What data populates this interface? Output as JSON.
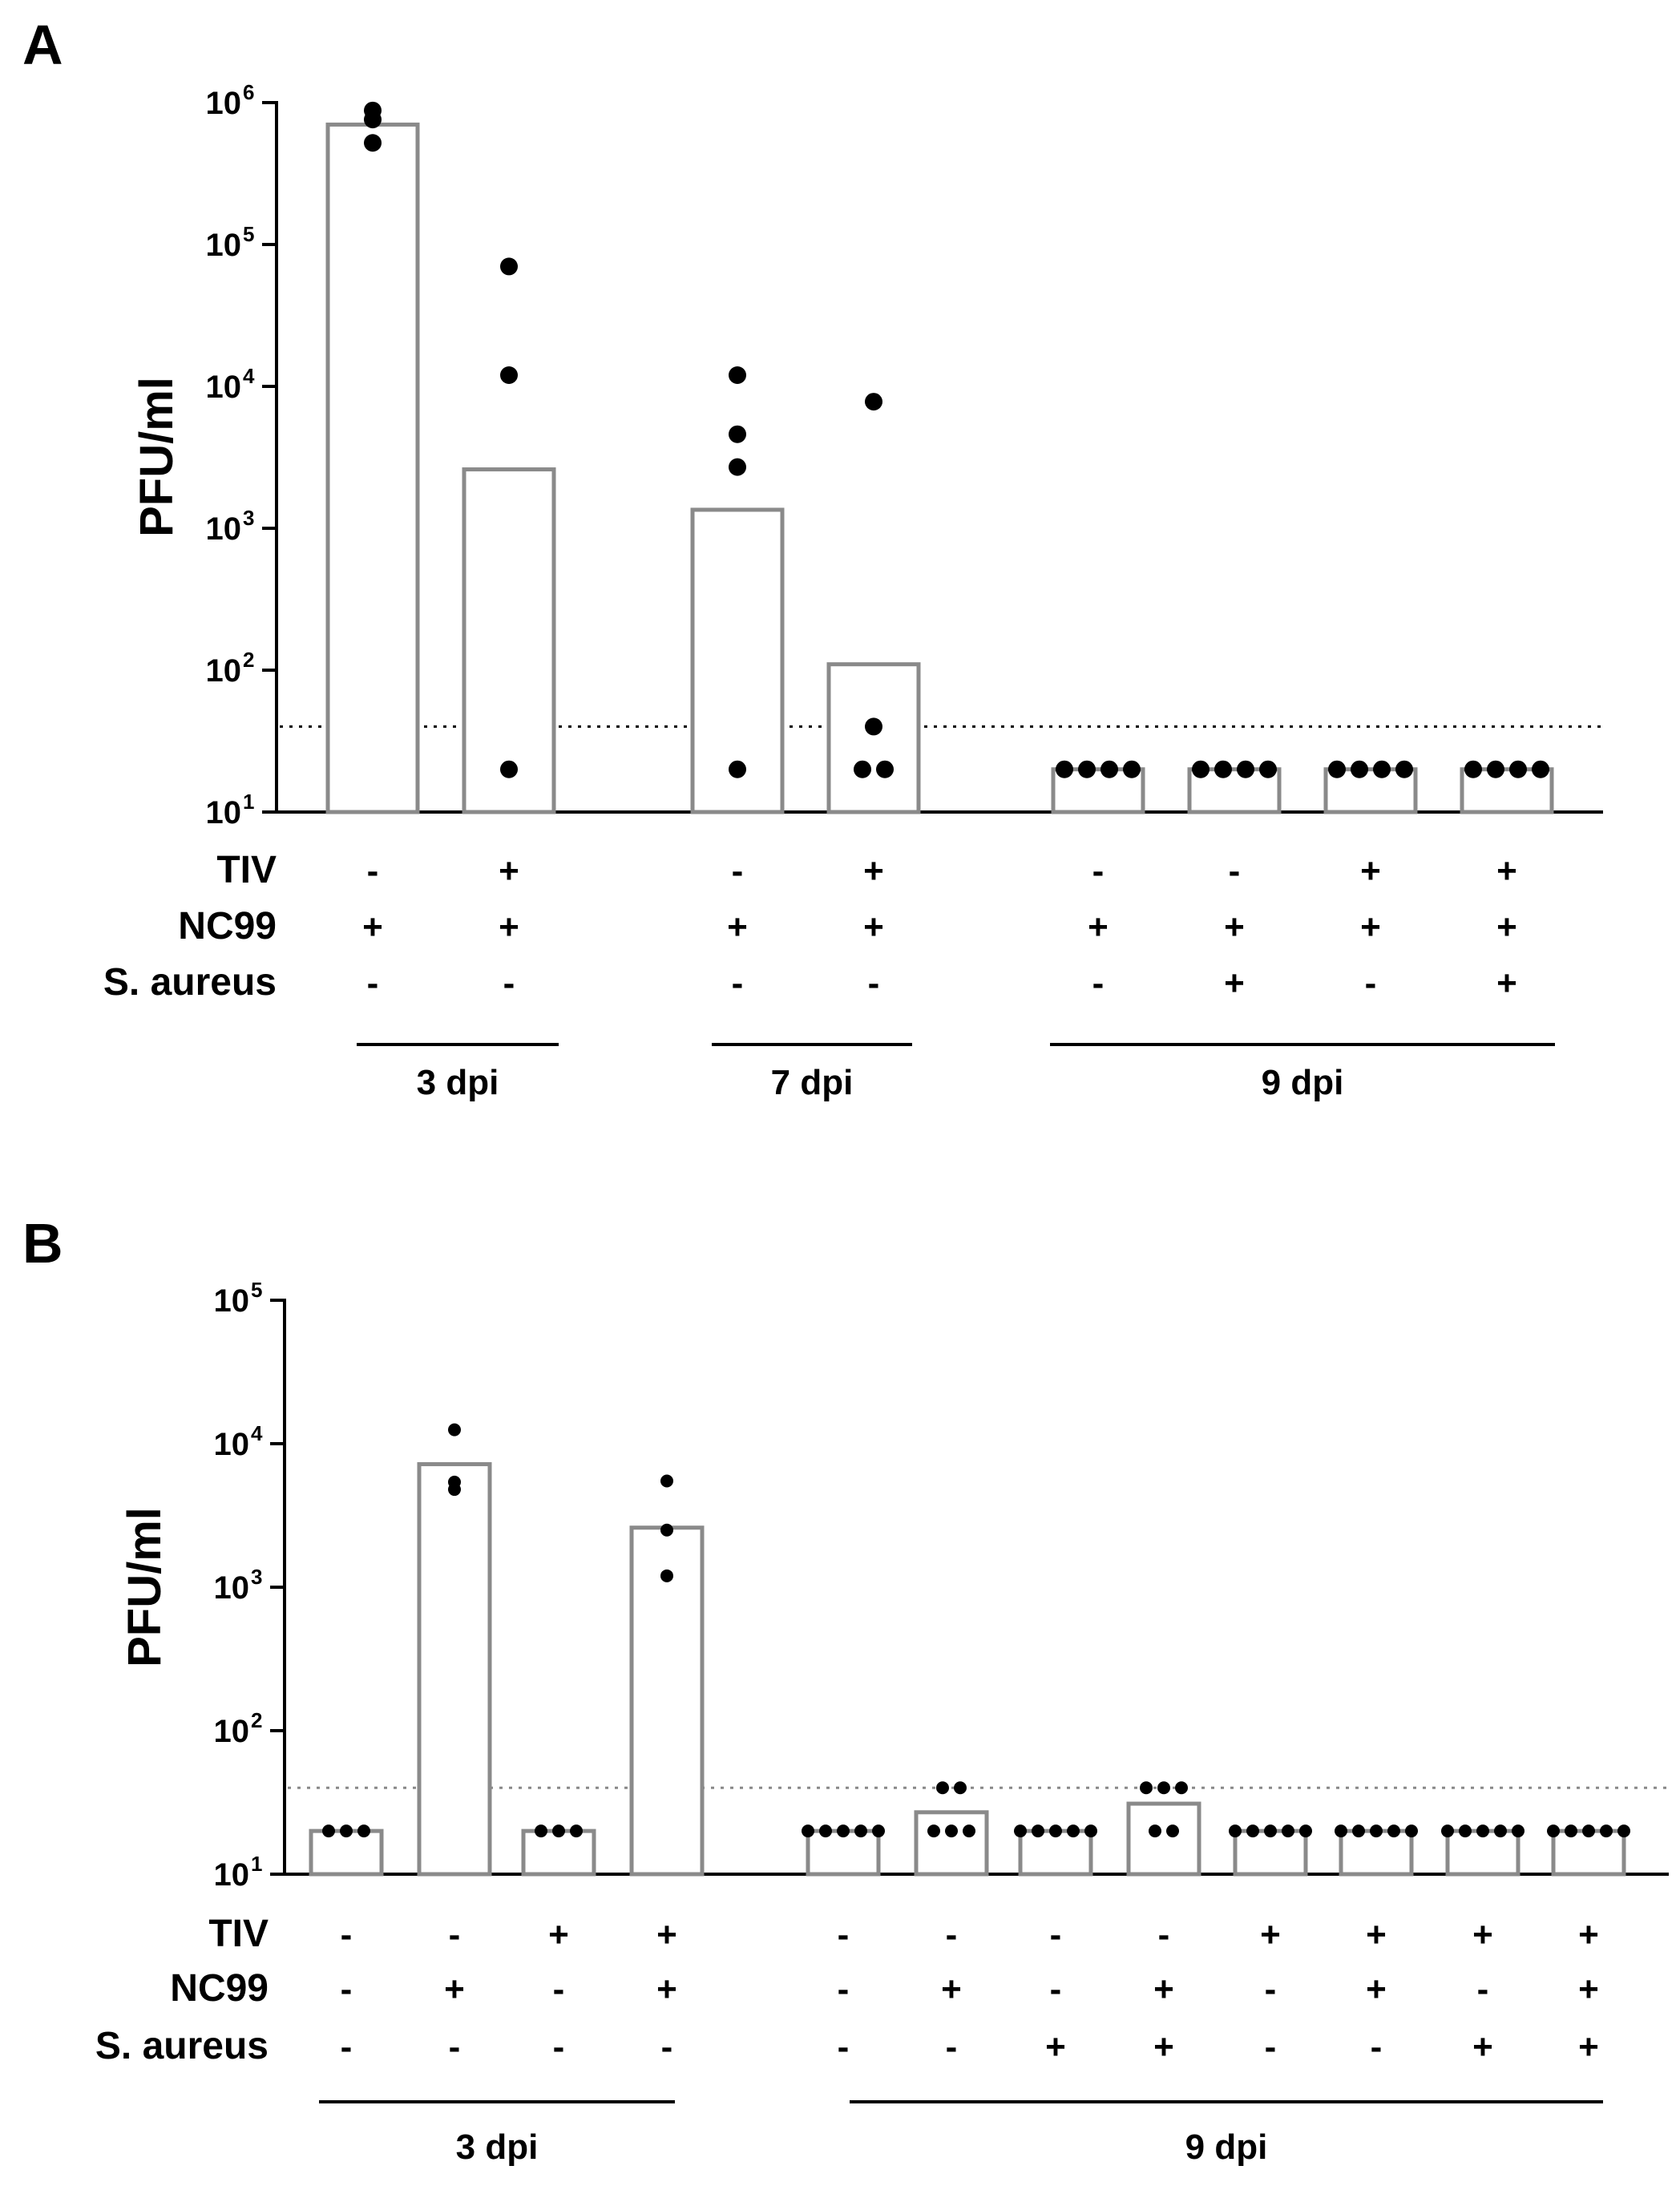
{
  "chart_data": [
    {
      "panel": "A",
      "type": "bar",
      "scale": "log",
      "ylabel": "PFU/ml",
      "ylim": [
        10,
        1000000
      ],
      "yticks": [
        {
          "base": "10",
          "exp": "1"
        },
        {
          "base": "10",
          "exp": "2"
        },
        {
          "base": "10",
          "exp": "3"
        },
        {
          "base": "10",
          "exp": "4"
        },
        {
          "base": "10",
          "exp": "5"
        },
        {
          "base": "10",
          "exp": "6"
        }
      ],
      "detection_limit": 40,
      "row_labels": [
        "TIV",
        "NC99",
        "S. aureus"
      ],
      "bars": [
        {
          "value": 700000,
          "points": [
            520000,
            760000,
            880000
          ],
          "tiv": "-",
          "nc99": "+",
          "saureus": "-"
        },
        {
          "value": 2600,
          "points": [
            20,
            12000,
            70000
          ],
          "tiv": "+",
          "nc99": "+",
          "saureus": "-"
        },
        {
          "value": 1350,
          "points": [
            20,
            2700,
            4600,
            12000
          ],
          "tiv": "-",
          "nc99": "+",
          "saureus": "-"
        },
        {
          "value": 110,
          "points": [
            20,
            20,
            40,
            7800
          ],
          "tiv": "+",
          "nc99": "+",
          "saureus": "-"
        },
        {
          "value": 20,
          "points": [
            20,
            20,
            20,
            20
          ],
          "tiv": "-",
          "nc99": "+",
          "saureus": "-"
        },
        {
          "value": 20,
          "points": [
            20,
            20,
            20,
            20
          ],
          "tiv": "-",
          "nc99": "+",
          "saureus": "+"
        },
        {
          "value": 20,
          "points": [
            20,
            20,
            20,
            20
          ],
          "tiv": "+",
          "nc99": "+",
          "saureus": "-"
        },
        {
          "value": 20,
          "points": [
            20,
            20,
            20,
            20
          ],
          "tiv": "+",
          "nc99": "+",
          "saureus": "+"
        }
      ],
      "groups": [
        {
          "label": "3 dpi",
          "first": 0,
          "last": 1
        },
        {
          "label": "7 dpi",
          "first": 2,
          "last": 3
        },
        {
          "label": "9 dpi",
          "first": 4,
          "last": 7
        }
      ]
    },
    {
      "panel": "B",
      "type": "bar",
      "scale": "log",
      "ylabel": "PFU/ml",
      "ylim": [
        10,
        100000
      ],
      "yticks": [
        {
          "base": "10",
          "exp": "1"
        },
        {
          "base": "10",
          "exp": "2"
        },
        {
          "base": "10",
          "exp": "3"
        },
        {
          "base": "10",
          "exp": "4"
        },
        {
          "base": "10",
          "exp": "5"
        }
      ],
      "detection_limit": 40,
      "row_labels": [
        "TIV",
        "NC99",
        "S. aureus"
      ],
      "bars": [
        {
          "value": 20,
          "points": [
            20,
            20,
            20
          ],
          "tiv": "-",
          "nc99": "-",
          "saureus": "-"
        },
        {
          "value": 7200,
          "points": [
            4800,
            5400,
            12500
          ],
          "tiv": "-",
          "nc99": "+",
          "saureus": "-"
        },
        {
          "value": 20,
          "points": [
            20,
            20,
            20
          ],
          "tiv": "+",
          "nc99": "-",
          "saureus": "-"
        },
        {
          "value": 2600,
          "points": [
            1200,
            2500,
            5500
          ],
          "tiv": "+",
          "nc99": "+",
          "saureus": "-"
        },
        {
          "value": 20,
          "points": [
            20,
            20,
            20,
            20,
            20
          ],
          "tiv": "-",
          "nc99": "-",
          "saureus": "-"
        },
        {
          "value": 27,
          "points": [
            20,
            20,
            20,
            40,
            40
          ],
          "tiv": "-",
          "nc99": "+",
          "saureus": "-"
        },
        {
          "value": 20,
          "points": [
            20,
            20,
            20,
            20,
            20
          ],
          "tiv": "-",
          "nc99": "-",
          "saureus": "+"
        },
        {
          "value": 31,
          "points": [
            20,
            20,
            40,
            40,
            40
          ],
          "tiv": "-",
          "nc99": "+",
          "saureus": "+"
        },
        {
          "value": 20,
          "points": [
            20,
            20,
            20,
            20,
            20
          ],
          "tiv": "+",
          "nc99": "-",
          "saureus": "-"
        },
        {
          "value": 20,
          "points": [
            20,
            20,
            20,
            20,
            20
          ],
          "tiv": "+",
          "nc99": "+",
          "saureus": "-"
        },
        {
          "value": 20,
          "points": [
            20,
            20,
            20,
            20,
            20
          ],
          "tiv": "+",
          "nc99": "-",
          "saureus": "+"
        },
        {
          "value": 20,
          "points": [
            20,
            20,
            20,
            20,
            20
          ],
          "tiv": "+",
          "nc99": "+",
          "saureus": "+"
        }
      ],
      "groups": [
        {
          "label": "3 dpi",
          "first": 0,
          "last": 3
        },
        {
          "label": "9 dpi",
          "first": 4,
          "last": 11
        }
      ]
    }
  ]
}
